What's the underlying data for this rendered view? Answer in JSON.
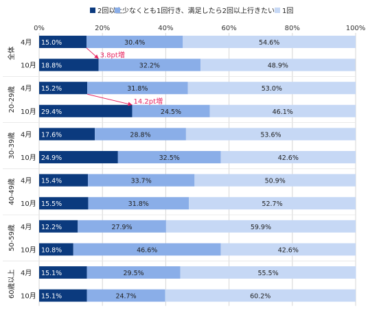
{
  "chart_data": {
    "type": "bar",
    "orientation": "horizontal",
    "stacked": true,
    "xlim": [
      0,
      100
    ],
    "x_ticks": [
      "0%",
      "20%",
      "40%",
      "60%",
      "80%",
      "100%"
    ],
    "legend_position": "top",
    "grid": true,
    "series": [
      {
        "name": "2回以上",
        "color": "#0b3a7e"
      },
      {
        "name": "少なくとも1回行き、満足したら2回以上行きたい",
        "color": "#8aaee8"
      },
      {
        "name": "1回",
        "color": "#c6d8f5"
      }
    ],
    "groups": [
      {
        "label": "全体",
        "rows": [
          {
            "month": "4月",
            "values": [
              15.0,
              30.4,
              54.6
            ],
            "labels": [
              "15.0%",
              "30.4%",
              "54.6%"
            ]
          },
          {
            "month": "10月",
            "values": [
              18.8,
              32.2,
              48.9
            ],
            "labels": [
              "18.8%",
              "32.2%",
              "48.9%"
            ]
          }
        ]
      },
      {
        "label": "20-29歳",
        "rows": [
          {
            "month": "4月",
            "values": [
              15.2,
              31.8,
              53.0
            ],
            "labels": [
              "15.2%",
              "31.8%",
              "53.0%"
            ]
          },
          {
            "month": "10月",
            "values": [
              29.4,
              24.5,
              46.1
            ],
            "labels": [
              "29.4%",
              "24.5%",
              "46.1%"
            ]
          }
        ]
      },
      {
        "label": "30-39歳",
        "rows": [
          {
            "month": "4月",
            "values": [
              17.6,
              28.8,
              53.6
            ],
            "labels": [
              "17.6%",
              "28.8%",
              "53.6%"
            ]
          },
          {
            "month": "10月",
            "values": [
              24.9,
              32.5,
              42.6
            ],
            "labels": [
              "24.9%",
              "32.5%",
              "42.6%"
            ]
          }
        ]
      },
      {
        "label": "40-49歳",
        "rows": [
          {
            "month": "4月",
            "values": [
              15.4,
              33.7,
              50.9
            ],
            "labels": [
              "15.4%",
              "33.7%",
              "50.9%"
            ]
          },
          {
            "month": "10月",
            "values": [
              15.5,
              31.8,
              52.7
            ],
            "labels": [
              "15.5%",
              "31.8%",
              "52.7%"
            ]
          }
        ]
      },
      {
        "label": "50-59歳",
        "rows": [
          {
            "month": "4月",
            "values": [
              12.2,
              27.9,
              59.9
            ],
            "labels": [
              "12.2%",
              "27.9%",
              "59.9%"
            ]
          },
          {
            "month": "10月",
            "values": [
              10.8,
              46.6,
              42.6
            ],
            "labels": [
              "10.8%",
              "46.6%",
              "42.6%"
            ]
          }
        ]
      },
      {
        "label": "60歳以上",
        "rows": [
          {
            "month": "4月",
            "values": [
              15.1,
              29.5,
              55.5
            ],
            "labels": [
              "15.1%",
              "29.5%",
              "55.5%"
            ]
          },
          {
            "month": "10月",
            "values": [
              15.1,
              24.7,
              60.2
            ],
            "labels": [
              "15.1%",
              "24.7%",
              "60.2%"
            ]
          }
        ]
      }
    ],
    "annotations": [
      {
        "text": "3.8pt増",
        "group": 0,
        "color": "#e8245f"
      },
      {
        "text": "14.2pt増",
        "group": 1,
        "color": "#e8245f"
      }
    ]
  }
}
